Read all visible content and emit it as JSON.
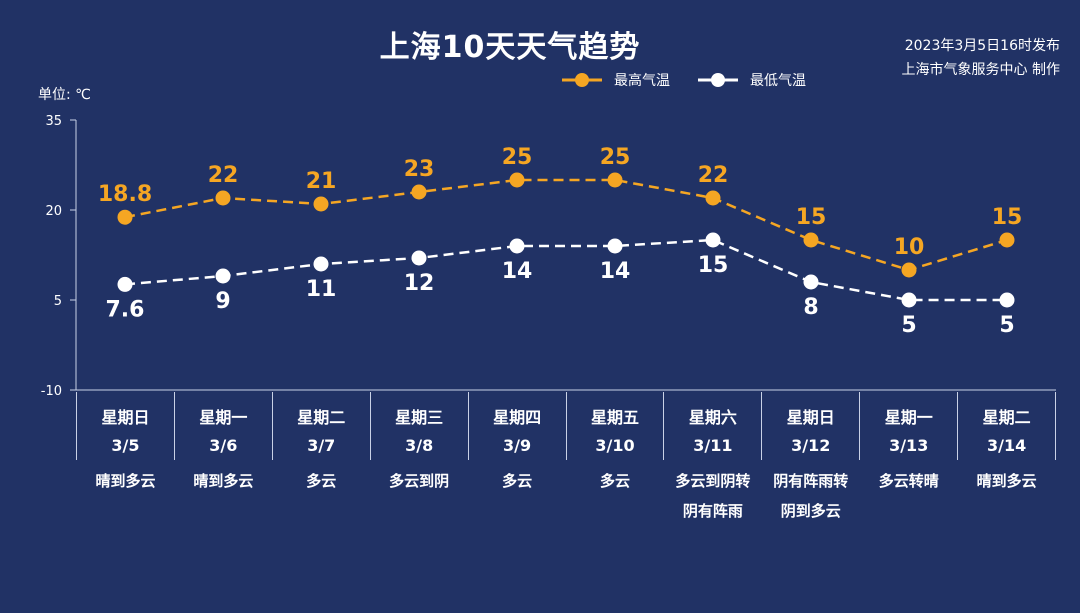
{
  "header": {
    "title": "上海10天天气趋势",
    "publish_time": "2023年3月5日16时发布",
    "publisher": "上海市气象服务中心 制作",
    "unit": "单位: ℃"
  },
  "legend": {
    "high_label": "最高气温",
    "low_label": "最低气温"
  },
  "colors": {
    "background": "#213265",
    "high": "#f5a623",
    "low": "#ffffff"
  },
  "chart_data": {
    "type": "line",
    "title": "上海10天天气趋势",
    "ylabel": "单位: ℃",
    "ylim": [
      -10,
      35
    ],
    "yticks": [
      35,
      20,
      5,
      -10
    ],
    "categories": [
      "3/5",
      "3/6",
      "3/7",
      "3/8",
      "3/9",
      "3/10",
      "3/11",
      "3/12",
      "3/13",
      "3/14"
    ],
    "series": [
      {
        "name": "最高气温",
        "values": [
          18.8,
          22,
          21,
          23,
          25,
          25,
          22,
          15,
          10,
          15
        ]
      },
      {
        "name": "最低气温",
        "values": [
          7.6,
          9,
          11,
          12,
          14,
          14,
          15,
          8,
          5,
          5
        ]
      }
    ],
    "legend_position": "top-right",
    "grid": false
  },
  "days": [
    {
      "weekday": "星期日",
      "date": "3/5",
      "weather": "晴到多云"
    },
    {
      "weekday": "星期一",
      "date": "3/6",
      "weather": "晴到多云"
    },
    {
      "weekday": "星期二",
      "date": "3/7",
      "weather": "多云"
    },
    {
      "weekday": "星期三",
      "date": "3/8",
      "weather": "多云到阴"
    },
    {
      "weekday": "星期四",
      "date": "3/9",
      "weather": "多云"
    },
    {
      "weekday": "星期五",
      "date": "3/10",
      "weather": "多云"
    },
    {
      "weekday": "星期六",
      "date": "3/11",
      "weather": "多云到阴转\n阴有阵雨"
    },
    {
      "weekday": "星期日",
      "date": "3/12",
      "weather": "阴有阵雨转\n阴到多云"
    },
    {
      "weekday": "星期一",
      "date": "3/13",
      "weather": "多云转晴"
    },
    {
      "weekday": "星期二",
      "date": "3/14",
      "weather": "晴到多云"
    }
  ]
}
